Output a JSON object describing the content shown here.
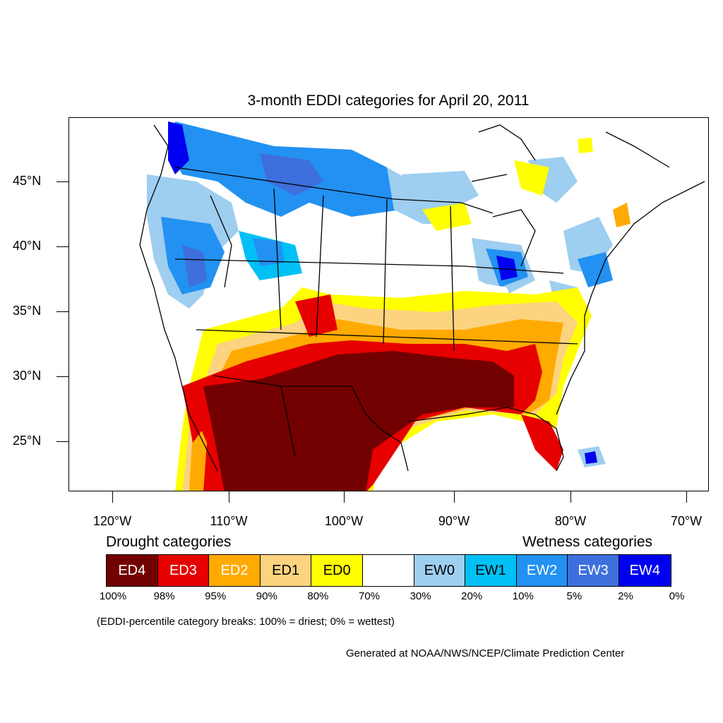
{
  "title": "3-month EDDI categories for April 20, 2011",
  "axes": {
    "lat_labels": [
      "45°N",
      "40°N",
      "35°N",
      "30°N",
      "25°N"
    ],
    "lon_labels": [
      "120°W",
      "110°W",
      "100°W",
      "90°W",
      "80°W",
      "70°W"
    ]
  },
  "legend": {
    "drought_heading": "Drought categories",
    "wetness_heading": "Wetness categories",
    "categories": [
      {
        "label": "ED4",
        "color": "#730000",
        "text_color": "#ffffff"
      },
      {
        "label": "ED3",
        "color": "#e60000",
        "text_color": "#ffffff"
      },
      {
        "label": "ED2",
        "color": "#ffaa00",
        "text_color": "#ffffff"
      },
      {
        "label": "ED1",
        "color": "#fcd37f",
        "text_color": "#000000"
      },
      {
        "label": "ED0",
        "color": "#ffff00",
        "text_color": "#000000"
      },
      {
        "label": "",
        "color": "#ffffff",
        "text_color": "#000000"
      },
      {
        "label": "EW0",
        "color": "#9ecef0",
        "text_color": "#000000"
      },
      {
        "label": "EW1",
        "color": "#00c0f5",
        "text_color": "#000000"
      },
      {
        "label": "EW2",
        "color": "#2291f2",
        "text_color": "#ffffff"
      },
      {
        "label": "EW3",
        "color": "#3e6fdc",
        "text_color": "#ffffff"
      },
      {
        "label": "EW4",
        "color": "#0000f0",
        "text_color": "#ffffff"
      }
    ],
    "breaks": [
      "100%",
      "98%",
      "95%",
      "90%",
      "80%",
      "70%",
      "30%",
      "20%",
      "10%",
      "5%",
      "2%",
      "0%"
    ]
  },
  "note": "(EDDI-percentile category breaks: 100% = driest; 0% = wettest)",
  "credit": "Generated at NOAA/NWS/NCEP/Climate Prediction Center"
}
